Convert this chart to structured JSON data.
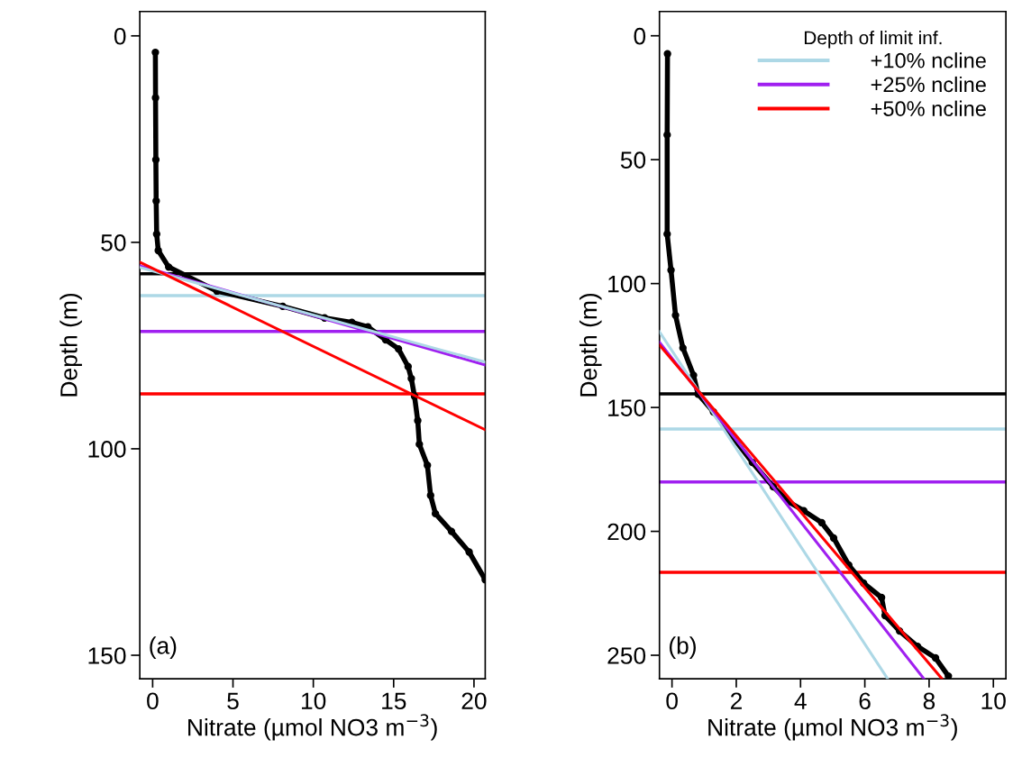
{
  "chart_data": [
    {
      "type": "line",
      "xlabel": "Nitrate (µmol NO3 m$^{−3}$)",
      "ylabel": "Depth (m)",
      "xlim": [
        -0.8,
        20.7
      ],
      "ylim": [
        155.7,
        -5.9
      ],
      "xticks": [
        0,
        5,
        10,
        15,
        20
      ],
      "yticks": [
        0,
        50,
        100,
        150
      ],
      "annotations": [
        "(a)"
      ],
      "ref_lines": [
        {
          "axis": "y",
          "value": 57.6,
          "color": "#000000"
        },
        {
          "axis": "y",
          "value": 62.9,
          "color": "#add8e6"
        },
        {
          "axis": "y",
          "value": 71.6,
          "color": "#a020f0"
        },
        {
          "axis": "y",
          "value": 86.7,
          "color": "#ff0000"
        }
      ],
      "series": [
        {
          "marker": "circle",
          "color": "#000000",
          "x": [
            0.17,
            0.18,
            0.2,
            0.22,
            0.25,
            0.35,
            1.0,
            4.0,
            8.1,
            10.7,
            12.4,
            13.4,
            14.5,
            15.3,
            15.9,
            16.1,
            16.3,
            16.5,
            16.6,
            17.1,
            17.3,
            17.6,
            18.6,
            19.7,
            20.7
          ],
          "values": [
            4,
            15,
            30,
            40,
            48,
            52,
            56,
            61.8,
            65.5,
            68.3,
            69.4,
            70.5,
            73.6,
            75.8,
            80.1,
            83,
            87.3,
            93.2,
            98.9,
            104,
            111.3,
            115.7,
            120,
            125,
            131.7
          ]
        },
        {
          "marker": "none",
          "color": "#a020f0",
          "x": [
            -0.8,
            20.7
          ],
          "values": [
            55.7,
            79.7
          ]
        },
        {
          "marker": "none",
          "color": "#add8e6",
          "x": [
            -0.8,
            20.7
          ],
          "values": [
            56.1,
            79.0
          ]
        },
        {
          "marker": "none",
          "color": "#ff0000",
          "x": [
            -0.8,
            20.7
          ],
          "values": [
            54.8,
            95.4
          ]
        }
      ]
    },
    {
      "type": "line",
      "xlabel": "Nitrate (µmol NO3 m$^{−3}$)",
      "ylabel": "Depth (m)",
      "xlim": [
        -0.39,
        10.39
      ],
      "ylim": [
        259.5,
        -9.8
      ],
      "xticks": [
        0,
        2,
        4,
        6,
        8,
        10
      ],
      "yticks": [
        0,
        50,
        100,
        150,
        200,
        250
      ],
      "annotations": [
        "(b)"
      ],
      "legend": "top right",
      "legend_title": "Depth of limit inf.",
      "ref_lines": [
        {
          "axis": "y",
          "value": 144.5,
          "color": "#000000"
        },
        {
          "axis": "y",
          "value": 158.7,
          "color": "#add8e6"
        },
        {
          "axis": "y",
          "value": 180.1,
          "color": "#a020f0"
        },
        {
          "axis": "y",
          "value": 216.5,
          "color": "#ff0000"
        }
      ],
      "series": [
        {
          "marker": "circle",
          "color": "#000000",
          "x": [
            -0.14,
            -0.15,
            -0.15,
            -0.03,
            0.11,
            0.34,
            0.67,
            0.81,
            1.29,
            1.85,
            2.5,
            3.15,
            3.62,
            4.1,
            4.66,
            5.03,
            5.5,
            5.96,
            6.52,
            6.63,
            7.08,
            7.64,
            8.2,
            8.6
          ],
          "values": [
            7.3,
            40,
            80,
            94.6,
            112.8,
            126,
            137,
            144.6,
            151.8,
            161.3,
            172.2,
            182,
            188,
            191.7,
            196.5,
            202.7,
            213.6,
            220.9,
            226.7,
            234,
            240.2,
            246.4,
            251.1,
            258.4
          ]
        },
        {
          "marker": "none",
          "name": "+10% ncline",
          "color": "#add8e6",
          "x": [
            -0.39,
            6.71
          ],
          "values": [
            119.4,
            259.5
          ]
        },
        {
          "marker": "none",
          "name": "+25% ncline",
          "color": "#a020f0",
          "x": [
            -0.39,
            7.84
          ],
          "values": [
            123.7,
            259.5
          ]
        },
        {
          "marker": "none",
          "name": "+50% ncline",
          "color": "#ff0000",
          "x": [
            -0.39,
            8.4
          ],
          "values": [
            124.8,
            259.5
          ]
        }
      ]
    }
  ]
}
